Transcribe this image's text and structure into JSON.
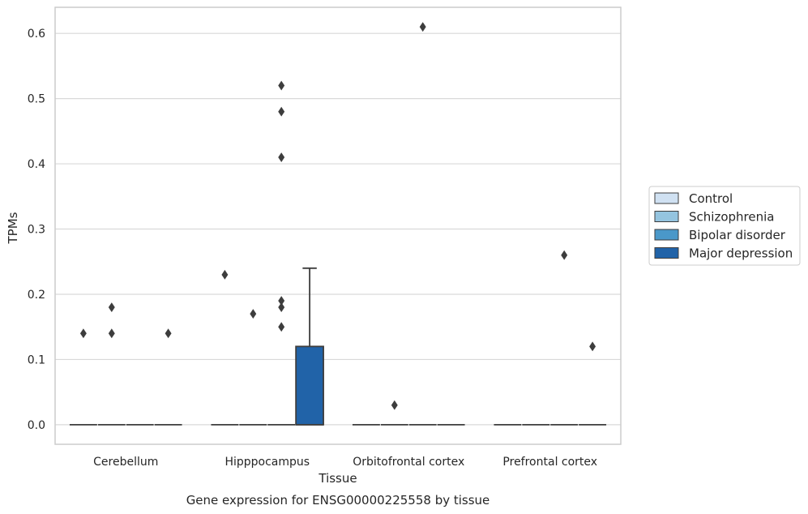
{
  "chart_data": {
    "type": "box",
    "title": "",
    "caption": "Gene expression for ENSG00000225558 by tissue",
    "xlabel": "Tissue",
    "ylabel": "TPMs",
    "ylim": [
      -0.03,
      0.64
    ],
    "yticks": [
      0.0,
      0.1,
      0.2,
      0.3,
      0.4,
      0.5,
      0.6
    ],
    "ytick_labels": [
      "0.0",
      "0.1",
      "0.2",
      "0.3",
      "0.4",
      "0.5",
      "0.6"
    ],
    "grid": "horizontal",
    "legend_position": "right",
    "categories": [
      "Cerebellum",
      "Hipppocampus",
      "Orbitofrontal cortex",
      "Prefrontal cortex"
    ],
    "series": [
      {
        "name": "Control",
        "color": "#d0e1f2",
        "boxes": [
          {
            "q1": 0.0,
            "median": 0.0,
            "q3": 0.0,
            "whisker_low": 0.0,
            "whisker_high": 0.0,
            "outliers": [
              0.14
            ]
          },
          {
            "q1": 0.0,
            "median": 0.0,
            "q3": 0.0,
            "whisker_low": 0.0,
            "whisker_high": 0.0,
            "outliers": [
              0.23
            ]
          },
          {
            "q1": 0.0,
            "median": 0.0,
            "q3": 0.0,
            "whisker_low": 0.0,
            "whisker_high": 0.0,
            "outliers": []
          },
          {
            "q1": 0.0,
            "median": 0.0,
            "q3": 0.0,
            "whisker_low": 0.0,
            "whisker_high": 0.0,
            "outliers": []
          }
        ]
      },
      {
        "name": "Schizophrenia",
        "color": "#94c4df",
        "boxes": [
          {
            "q1": 0.0,
            "median": 0.0,
            "q3": 0.0,
            "whisker_low": 0.0,
            "whisker_high": 0.0,
            "outliers": [
              0.14,
              0.18
            ]
          },
          {
            "q1": 0.0,
            "median": 0.0,
            "q3": 0.0,
            "whisker_low": 0.0,
            "whisker_high": 0.0,
            "outliers": [
              0.17
            ]
          },
          {
            "q1": 0.0,
            "median": 0.0,
            "q3": 0.0,
            "whisker_low": 0.0,
            "whisker_high": 0.0,
            "outliers": [
              0.03
            ]
          },
          {
            "q1": 0.0,
            "median": 0.0,
            "q3": 0.0,
            "whisker_low": 0.0,
            "whisker_high": 0.0,
            "outliers": []
          }
        ]
      },
      {
        "name": "Bipolar disorder",
        "color": "#4a98c9",
        "boxes": [
          {
            "q1": 0.0,
            "median": 0.0,
            "q3": 0.0,
            "whisker_low": 0.0,
            "whisker_high": 0.0,
            "outliers": []
          },
          {
            "q1": 0.0,
            "median": 0.0,
            "q3": 0.0,
            "whisker_low": 0.0,
            "whisker_high": 0.0,
            "outliers": [
              0.15,
              0.18,
              0.19,
              0.41,
              0.48,
              0.52
            ]
          },
          {
            "q1": 0.0,
            "median": 0.0,
            "q3": 0.0,
            "whisker_low": 0.0,
            "whisker_high": 0.0,
            "outliers": [
              0.61
            ]
          },
          {
            "q1": 0.0,
            "median": 0.0,
            "q3": 0.0,
            "whisker_low": 0.0,
            "whisker_high": 0.0,
            "outliers": [
              0.26
            ]
          }
        ]
      },
      {
        "name": "Major depression",
        "color": "#2163a8",
        "boxes": [
          {
            "q1": 0.0,
            "median": 0.0,
            "q3": 0.0,
            "whisker_low": 0.0,
            "whisker_high": 0.0,
            "outliers": [
              0.14
            ]
          },
          {
            "q1": 0.0,
            "median": 0.0,
            "q3": 0.12,
            "whisker_low": 0.0,
            "whisker_high": 0.24,
            "outliers": []
          },
          {
            "q1": 0.0,
            "median": 0.0,
            "q3": 0.0,
            "whisker_low": 0.0,
            "whisker_high": 0.0,
            "outliers": []
          },
          {
            "q1": 0.0,
            "median": 0.0,
            "q3": 0.0,
            "whisker_low": 0.0,
            "whisker_high": 0.0,
            "outliers": [
              0.12
            ]
          }
        ]
      }
    ]
  },
  "colors": {
    "grid": "#d9d9d9",
    "frame": "#cccccc",
    "box_edge": "#3d3d3d",
    "outlier": "#3d3d3d"
  }
}
